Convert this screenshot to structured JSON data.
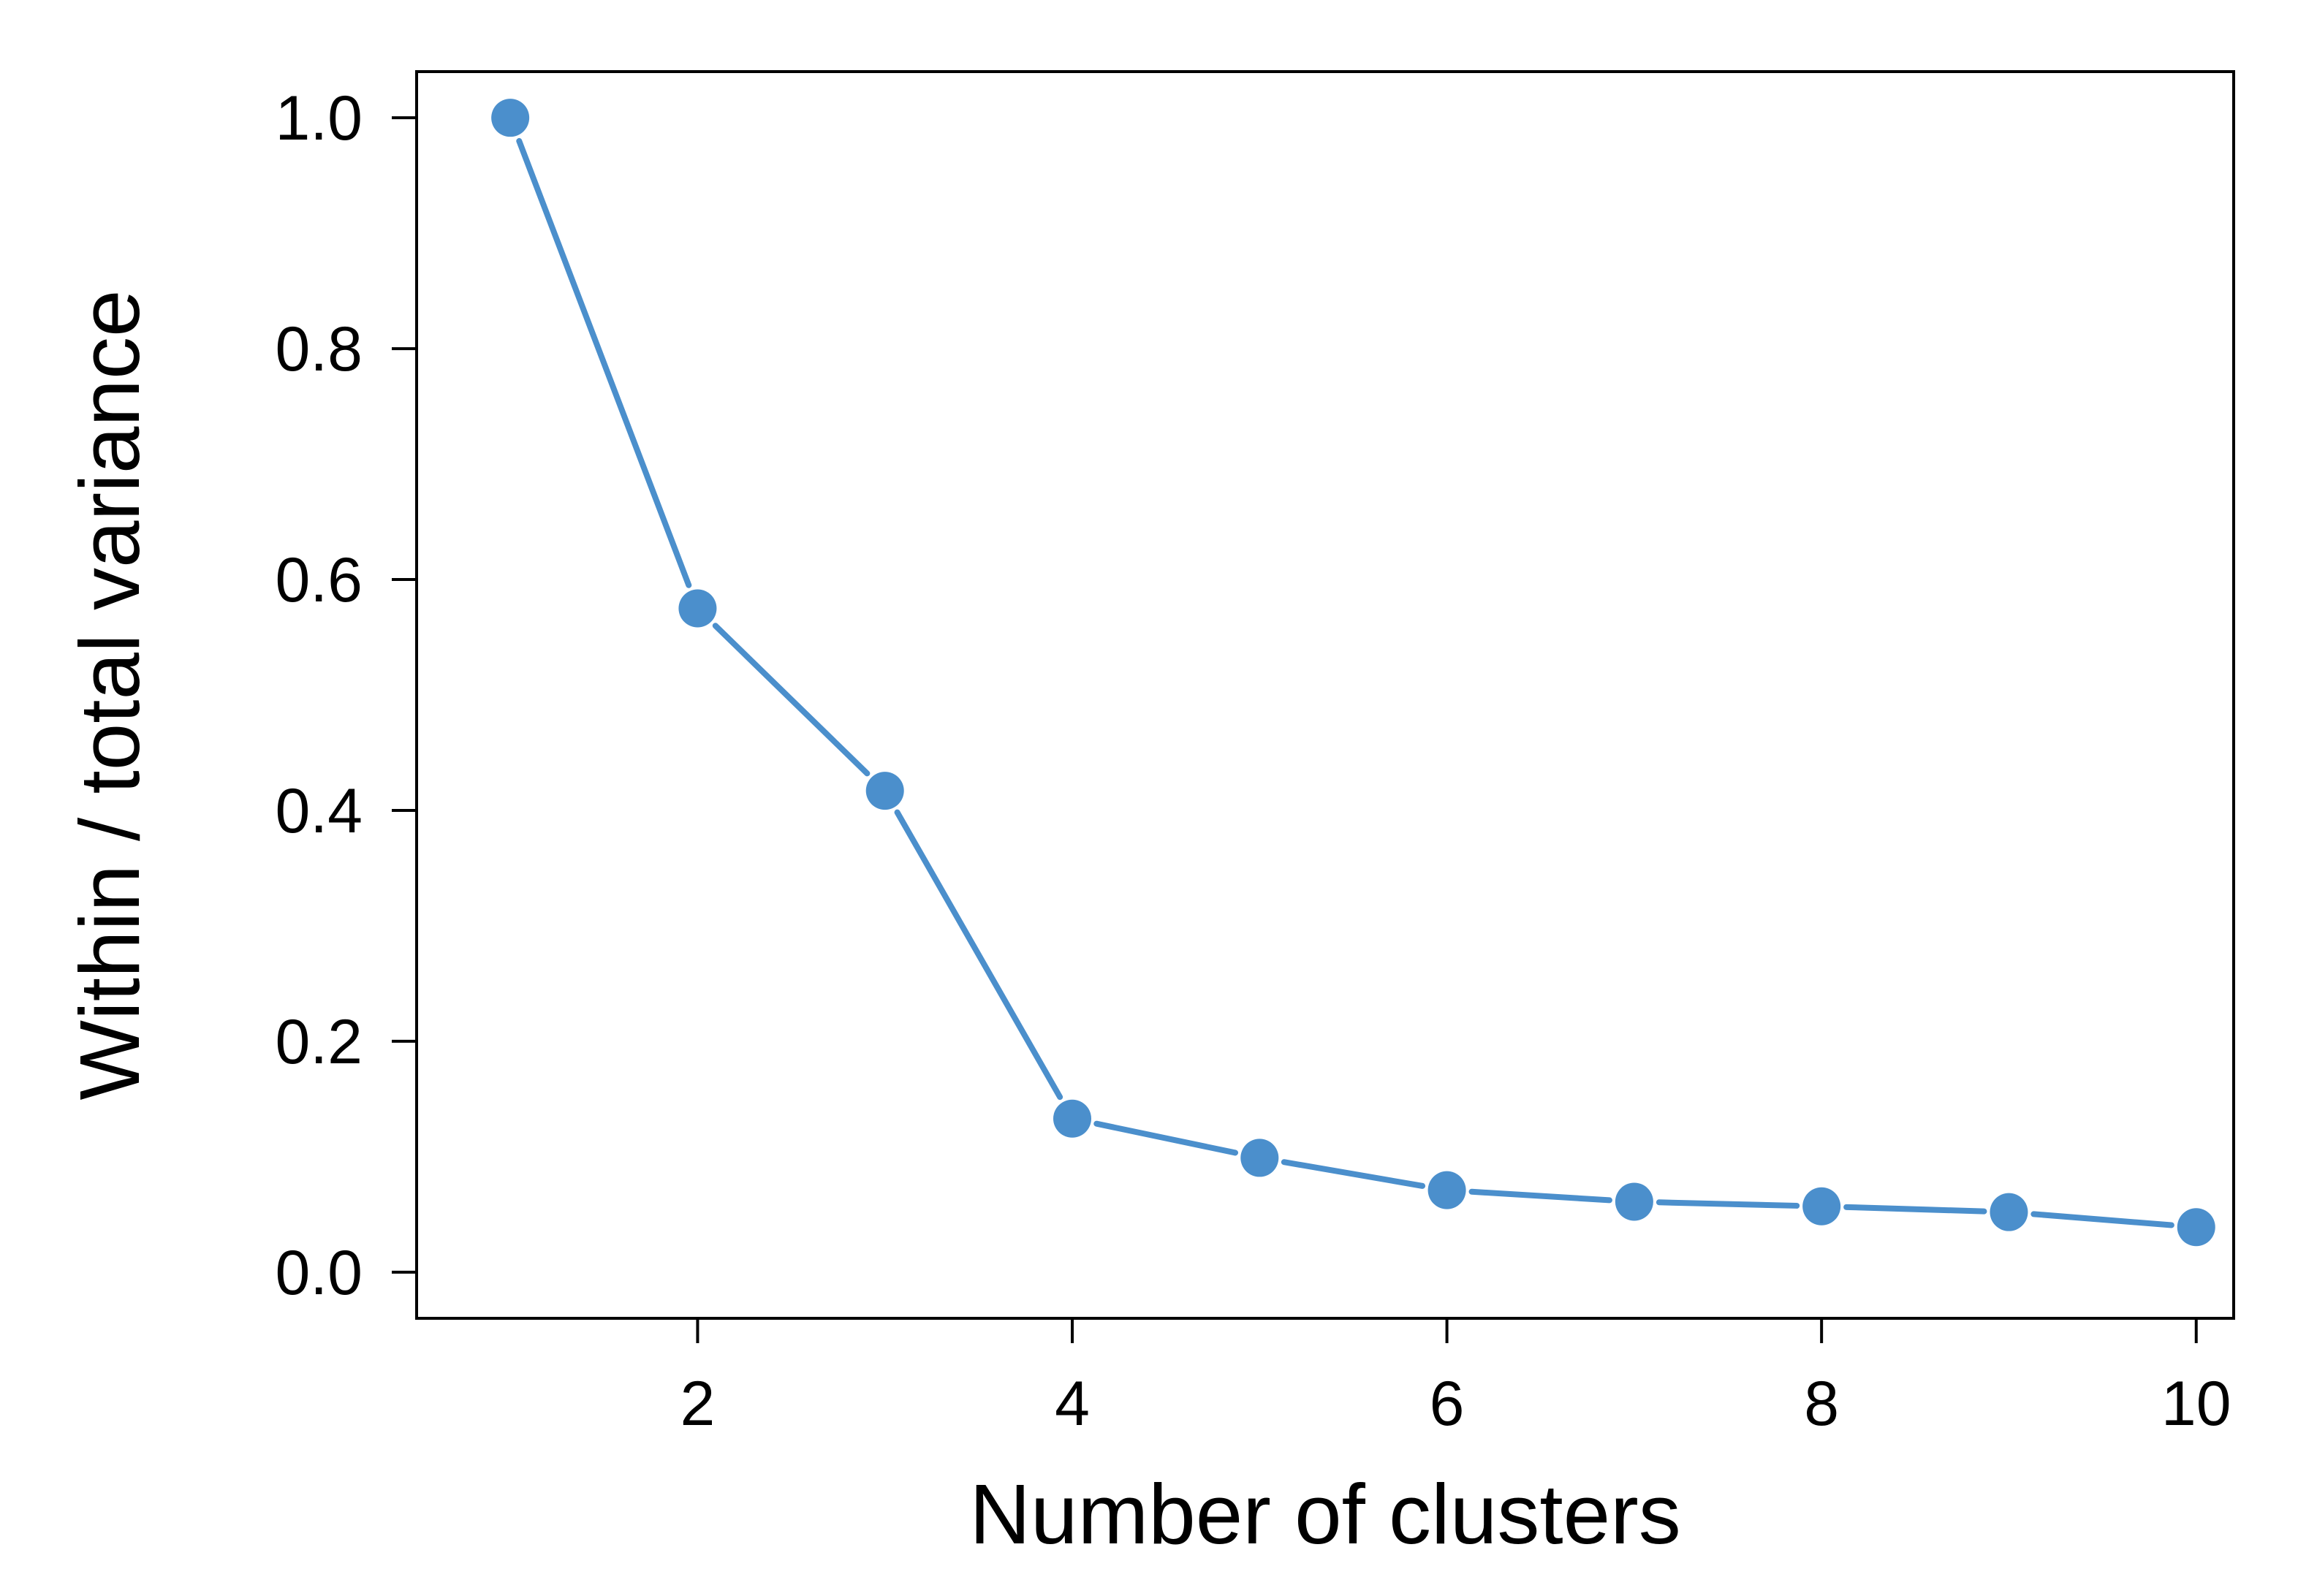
{
  "chart_data": {
    "type": "line",
    "title": "",
    "xlabel": "Number of clusters",
    "ylabel": "Within / total variance",
    "xlim": [
      0.5,
      10.2
    ],
    "ylim": [
      -0.04,
      1.04
    ],
    "xticks": [
      2,
      4,
      6,
      8,
      10
    ],
    "xtick_labels": [
      "2",
      "4",
      "6",
      "8",
      "10"
    ],
    "yticks": [
      0.0,
      0.2,
      0.4,
      0.6,
      0.8,
      1.0
    ],
    "ytick_labels": [
      "0.0",
      "0.2",
      "0.4",
      "0.6",
      "0.8",
      "1.0"
    ],
    "grid": false,
    "legend": "none",
    "series": [
      {
        "color": "#4b8fcc",
        "marker": "circle",
        "x": [
          1,
          2,
          3,
          4,
          5,
          6,
          7,
          8,
          9,
          10
        ],
        "y": [
          1.0,
          0.575,
          0.417,
          0.133,
          0.099,
          0.071,
          0.061,
          0.057,
          0.052,
          0.039
        ]
      }
    ]
  }
}
